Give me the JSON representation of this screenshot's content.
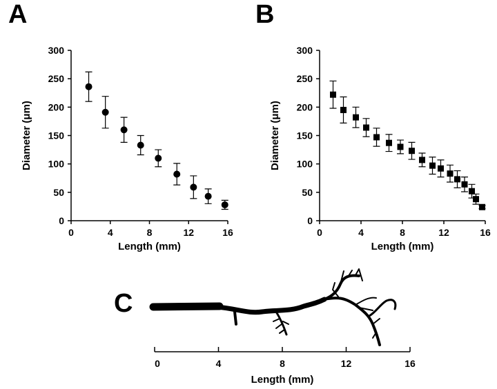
{
  "chart_data": [
    {
      "type": "scatter",
      "panel_label": "A",
      "marker": "circle",
      "color": "#000000",
      "xlabel": "Length (mm)",
      "ylabel": "Diameter (μm)",
      "xlim": [
        0,
        16
      ],
      "xticks": [
        0,
        4,
        8,
        12,
        16
      ],
      "ylim": [
        0,
        300
      ],
      "yticks": [
        0,
        50,
        100,
        150,
        200,
        250,
        300
      ],
      "x": [
        1.8,
        3.5,
        5.4,
        7.1,
        8.9,
        10.8,
        12.5,
        14.0,
        15.7
      ],
      "values": [
        236,
        191,
        160,
        133,
        110,
        82,
        59,
        43,
        28
      ],
      "errors": [
        26,
        28,
        22,
        17,
        15,
        19,
        20,
        13,
        8
      ]
    },
    {
      "type": "scatter",
      "panel_label": "B",
      "marker": "square",
      "color": "#000000",
      "xlabel": "Length (mm)",
      "ylabel": "Diameter (μm)",
      "xlim": [
        0,
        16
      ],
      "xticks": [
        0,
        4,
        8,
        12,
        16
      ],
      "ylim": [
        0,
        300
      ],
      "yticks": [
        0,
        50,
        100,
        150,
        200,
        250,
        300
      ],
      "x": [
        1.3,
        2.3,
        3.5,
        4.5,
        5.5,
        6.7,
        7.8,
        8.9,
        9.9,
        10.9,
        11.7,
        12.6,
        13.3,
        14.0,
        14.7,
        15.1,
        15.7
      ],
      "values": [
        222,
        195,
        182,
        164,
        147,
        137,
        130,
        123,
        107,
        97,
        92,
        83,
        73,
        64,
        52,
        38,
        24
      ],
      "errors": [
        24,
        23,
        18,
        16,
        16,
        15,
        12,
        15,
        12,
        15,
        15,
        15,
        15,
        13,
        12,
        9,
        3
      ]
    },
    {
      "type": "scale",
      "panel_label": "C",
      "xlabel": "Length  (mm)",
      "xlim": [
        0,
        16
      ],
      "xticks": [
        0,
        4,
        8,
        12,
        16
      ]
    }
  ]
}
